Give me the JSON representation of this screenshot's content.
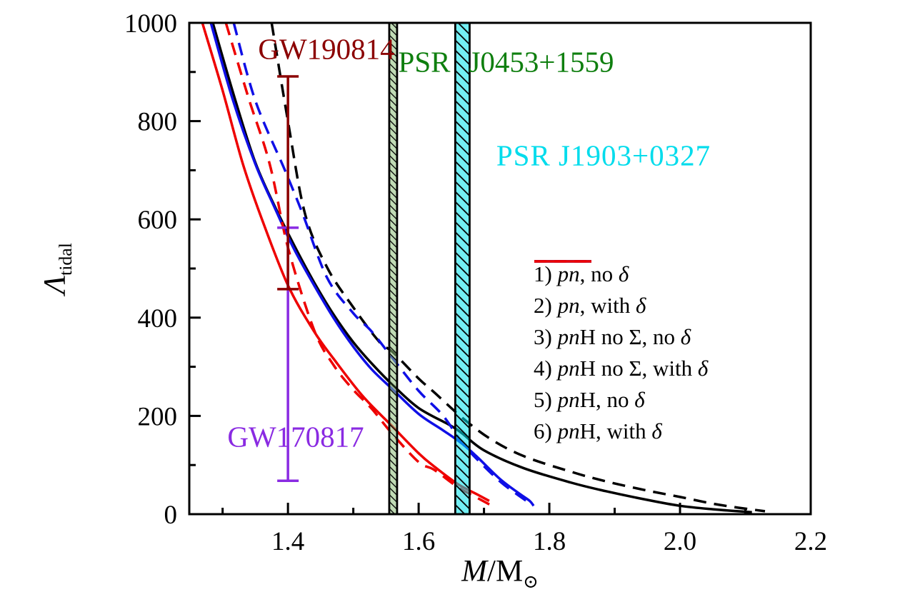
{
  "figure": {
    "x_axis": {
      "title_html": "<i>M</i>/M<sub>&#8857;</sub>",
      "major_ticks": [
        1.4,
        1.6,
        1.8,
        2.0,
        2.2
      ],
      "tick_labels": [
        "1.4",
        "1.6",
        "1.8",
        "2.0",
        "2.2"
      ],
      "minor_ticks": [
        1.3,
        1.5,
        1.7,
        1.9,
        2.1
      ]
    },
    "y_axis": {
      "title_html": "<i>&#923;</i><sub>tidal</sub>",
      "major_ticks": [
        0,
        200,
        400,
        600,
        800,
        1000
      ],
      "tick_labels": [
        "0",
        "200",
        "400",
        "600",
        "800",
        "1000"
      ],
      "minor_ticks": [
        100,
        300,
        500,
        700,
        900
      ]
    }
  },
  "annotations": {
    "gw190814": "GW190814",
    "gw170817": "GW170817",
    "psr_j0453_part1": "PSR",
    "psr_j0453_part2": "J0453+1559",
    "psr_j1903": "PSR J1903+0327"
  },
  "legend": {
    "position": "right-center",
    "items": [
      {
        "label_html": "1) <i>pn</i>, no <i>&#948;</i>",
        "color": "#000000",
        "dash": false
      },
      {
        "label_html": "2) <i>pn</i>, with <i>&#948;</i>",
        "color": "#000000",
        "dash": true
      },
      {
        "label_html": "3) <i>pn</i>H no &#931;, no <i>&#948;</i>",
        "color": "#0f0fe6",
        "dash": false
      },
      {
        "label_html": "4) <i>pn</i>H no &#931;, with <i>&#948;</i>",
        "color": "#0f0fe6",
        "dash": true
      },
      {
        "label_html": "5) <i>pn</i>H, no <i>&#948;</i>",
        "color": "#ee0000",
        "dash": false
      },
      {
        "label_html": "6) <i>pn</i>H, with <i>&#948;</i>",
        "color": "#ee0000",
        "dash": true
      }
    ]
  },
  "chart_data": {
    "type": "line",
    "title": "",
    "xlabel": "M/M_sun",
    "ylabel": "Lambda_tidal",
    "xlim": [
      1.249,
      2.2
    ],
    "ylim": [
      0,
      1000
    ],
    "grid": false,
    "series": [
      {
        "name": "1) pn, no delta",
        "color": "#000000",
        "dash": false,
        "points": [
          [
            1.285,
            1000
          ],
          [
            1.32,
            840
          ],
          [
            1.35,
            716
          ],
          [
            1.38,
            626
          ],
          [
            1.41,
            546
          ],
          [
            1.44,
            472
          ],
          [
            1.47,
            406
          ],
          [
            1.5,
            350
          ],
          [
            1.53,
            304
          ],
          [
            1.561,
            262
          ],
          [
            1.6,
            216
          ],
          [
            1.648,
            181
          ],
          [
            1.666,
            165
          ],
          [
            1.7,
            130
          ],
          [
            1.76,
            94
          ],
          [
            1.834,
            64
          ],
          [
            1.886,
            47
          ],
          [
            1.95,
            29
          ],
          [
            2.0,
            17
          ],
          [
            2.05,
            10
          ],
          [
            2.11,
            4
          ]
        ]
      },
      {
        "name": "2) pn, with delta",
        "color": "#000000",
        "dash": true,
        "points": [
          [
            1.375,
            1000
          ],
          [
            1.4,
            800
          ],
          [
            1.426,
            612
          ],
          [
            1.46,
            502
          ],
          [
            1.5,
            421
          ],
          [
            1.539,
            352
          ],
          [
            1.561,
            329
          ],
          [
            1.6,
            276
          ],
          [
            1.623,
            249
          ],
          [
            1.667,
            196
          ],
          [
            1.71,
            153
          ],
          [
            1.761,
            118
          ],
          [
            1.834,
            86
          ],
          [
            1.886,
            67
          ],
          [
            1.95,
            48
          ],
          [
            2.0,
            35
          ],
          [
            2.06,
            19
          ],
          [
            2.13,
            6
          ]
        ]
      },
      {
        "name": "3) pnH no Sigma, no delta",
        "color": "#0f0fe6",
        "dash": false,
        "points": [
          [
            1.282,
            1000
          ],
          [
            1.315,
            846
          ],
          [
            1.35,
            713
          ],
          [
            1.38,
            623
          ],
          [
            1.408,
            543
          ],
          [
            1.44,
            466
          ],
          [
            1.47,
            399
          ],
          [
            1.5,
            341
          ],
          [
            1.528,
            295
          ],
          [
            1.561,
            253
          ],
          [
            1.6,
            204
          ],
          [
            1.637,
            171
          ],
          [
            1.666,
            144
          ],
          [
            1.69,
            116
          ],
          [
            1.725,
            71
          ],
          [
            1.755,
            41
          ],
          [
            1.77,
            27
          ],
          [
            1.776,
            17
          ]
        ]
      },
      {
        "name": "4) pnH no Sigma, with delta",
        "color": "#0f0fe6",
        "dash": true,
        "points": [
          [
            1.317,
            1000
          ],
          [
            1.35,
            842
          ],
          [
            1.395,
            701
          ],
          [
            1.422,
            613
          ],
          [
            1.46,
            481
          ],
          [
            1.5,
            409
          ],
          [
            1.528,
            372
          ],
          [
            1.561,
            316
          ],
          [
            1.6,
            251
          ],
          [
            1.637,
            201
          ],
          [
            1.666,
            146
          ],
          [
            1.69,
            111
          ],
          [
            1.725,
            66
          ],
          [
            1.75,
            41
          ],
          [
            1.768,
            24
          ]
        ]
      },
      {
        "name": "5) pnH, no delta",
        "color": "#ee0000",
        "dash": false,
        "points": [
          [
            1.269,
            1000
          ],
          [
            1.3,
            862
          ],
          [
            1.331,
            713
          ],
          [
            1.36,
            601
          ],
          [
            1.4,
            466
          ],
          [
            1.44,
            372
          ],
          [
            1.47,
            316
          ],
          [
            1.514,
            241
          ],
          [
            1.558,
            181
          ],
          [
            1.6,
            124
          ],
          [
            1.623,
            98
          ],
          [
            1.659,
            62
          ],
          [
            1.69,
            40
          ],
          [
            1.708,
            27
          ]
        ]
      },
      {
        "name": "6) pnH, with delta",
        "color": "#ee0000",
        "dash": true,
        "points": [
          [
            1.305,
            1000
          ],
          [
            1.34,
            846
          ],
          [
            1.372,
            713
          ],
          [
            1.4,
            543
          ],
          [
            1.44,
            375
          ],
          [
            1.47,
            303
          ],
          [
            1.5,
            253
          ],
          [
            1.528,
            215
          ],
          [
            1.558,
            166
          ],
          [
            1.6,
            106
          ],
          [
            1.623,
            91
          ],
          [
            1.659,
            56
          ],
          [
            1.69,
            33
          ],
          [
            1.711,
            18
          ]
        ]
      }
    ],
    "bands": [
      {
        "name": "PSR J0453+1559",
        "x0": 1.555,
        "x1": 1.567,
        "fill": "rgba(140,190,120,0.55)",
        "hatch_gap": 7,
        "hatch_width": 2.6,
        "text_color": "#0f7f0f"
      },
      {
        "name": "PSR J1903+0327",
        "x0": 1.656,
        "x1": 1.678,
        "fill": "rgba(0,225,235,0.55)",
        "hatch_gap": 10,
        "hatch_width": 3.6,
        "text_color": "#00dcec"
      }
    ],
    "error_bars": [
      {
        "name": "GW170817",
        "x": 1.4,
        "low": 68,
        "high": 583,
        "color": "#8a2be2"
      },
      {
        "name": "GW190814",
        "x": 1.4,
        "low": 458,
        "high": 891,
        "color": "#8b0000"
      }
    ]
  }
}
